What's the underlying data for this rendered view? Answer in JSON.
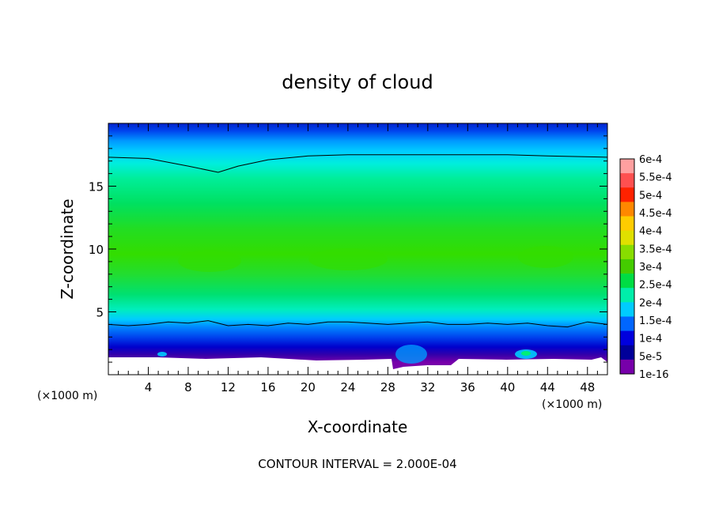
{
  "chart_data": {
    "type": "heatmap",
    "title": "density of cloud",
    "xlabel": "X-coordinate",
    "ylabel": "Z-coordinate",
    "x_unit_left": "(×1000 m)",
    "x_unit_right": "(×1000 m)",
    "xlim": [
      0,
      50
    ],
    "ylim": [
      0,
      20
    ],
    "x_ticks": [
      4,
      8,
      12,
      16,
      20,
      24,
      28,
      32,
      36,
      40,
      44,
      48
    ],
    "y_ticks": [
      5,
      10,
      15
    ],
    "footer": "CONTOUR INTERVAL = 2.000E-04",
    "colorbar": {
      "labels": [
        "6e-4",
        "5.5e-4",
        "5e-4",
        "4.5e-4",
        "4e-4",
        "3.5e-4",
        "3e-4",
        "2.5e-4",
        "2e-4",
        "1.5e-4",
        "1e-4",
        "5e-5",
        "1e-16"
      ],
      "colors": [
        "#ffa0a0",
        "#ff5050",
        "#ff2200",
        "#ff8800",
        "#ffcc00",
        "#e0e000",
        "#88dd00",
        "#44cc00",
        "#00dd44",
        "#00eeaa",
        "#00ccff",
        "#0066ff",
        "#0000dd",
        "#000099",
        "#7700aa"
      ]
    },
    "contour_lines": [
      {
        "level": "2e-4 (upper)",
        "points": [
          [
            0,
            17.3
          ],
          [
            4,
            17.2
          ],
          [
            8,
            16.6
          ],
          [
            11,
            16.1
          ],
          [
            13,
            16.6
          ],
          [
            16,
            17.1
          ],
          [
            20,
            17.4
          ],
          [
            24,
            17.5
          ],
          [
            30,
            17.5
          ],
          [
            36,
            17.5
          ],
          [
            40,
            17.5
          ],
          [
            44,
            17.4
          ],
          [
            50,
            17.3
          ]
        ]
      },
      {
        "level": "2e-4 (lower)",
        "points": [
          [
            0,
            4.0
          ],
          [
            2,
            3.9
          ],
          [
            4,
            4.0
          ],
          [
            6,
            4.2
          ],
          [
            8,
            4.1
          ],
          [
            10,
            4.3
          ],
          [
            12,
            3.9
          ],
          [
            14,
            4.0
          ],
          [
            16,
            3.9
          ],
          [
            18,
            4.1
          ],
          [
            20,
            4.0
          ],
          [
            22,
            4.2
          ],
          [
            24,
            4.2
          ],
          [
            26,
            4.1
          ],
          [
            28,
            4.0
          ],
          [
            30,
            4.1
          ],
          [
            32,
            4.2
          ],
          [
            34,
            4.0
          ],
          [
            36,
            4.0
          ],
          [
            38,
            4.1
          ],
          [
            40,
            4.0
          ],
          [
            42,
            4.1
          ],
          [
            44,
            3.9
          ],
          [
            46,
            3.8
          ],
          [
            48,
            4.2
          ],
          [
            50,
            4.0
          ]
        ]
      }
    ]
  }
}
